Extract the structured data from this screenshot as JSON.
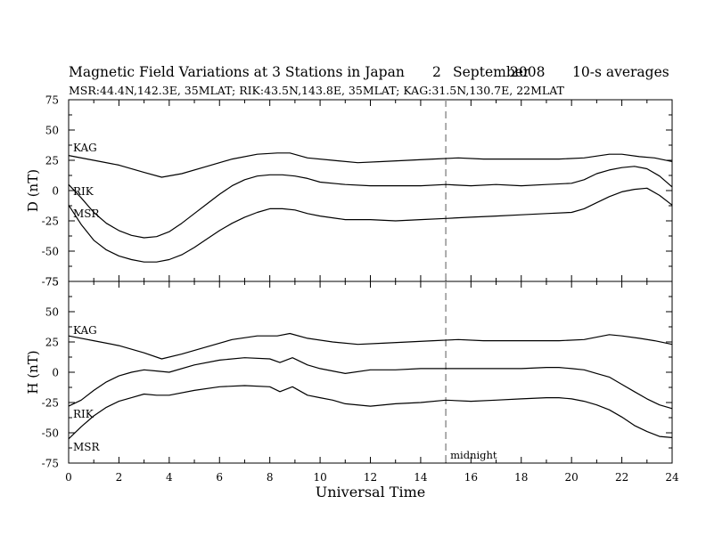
{
  "title": {
    "main": "Magnetic Field Variations at 3 Stations in Japan",
    "day": "2",
    "month": "September",
    "year": "2008",
    "averaging": "10-s averages"
  },
  "subtitle": "MSR:44.4N,142.3E, 35MLAT;   RIK:43.5N,143.8E, 35MLAT;   KAG:31.5N,130.7E, 22MLAT",
  "chart_data": [
    {
      "type": "line",
      "ylabel": "D (nT)",
      "xlim": [
        0,
        24
      ],
      "ylim": [
        -75,
        75
      ],
      "yticks": [
        "75",
        "50",
        "25",
        "0",
        "-25",
        "-50",
        "-75"
      ],
      "series": [
        {
          "name": "KAG",
          "x": [
            0,
            1,
            2,
            3,
            3.7,
            4.5,
            5.5,
            6.5,
            7.5,
            8.3,
            8.8,
            9.5,
            10.5,
            11.5,
            12.5,
            13.5,
            14.5,
            15.5,
            16.5,
            17.5,
            18.5,
            19.5,
            20.5,
            21.5,
            22,
            22.7,
            23.3,
            24
          ],
          "y": [
            29,
            25,
            21,
            15,
            11,
            14,
            20,
            26,
            30,
            31,
            31,
            27,
            25,
            23,
            24,
            25,
            26,
            27,
            26,
            26,
            26,
            26,
            27,
            30,
            30,
            28,
            27,
            24
          ]
        },
        {
          "name": "RIK",
          "x": [
            0,
            0.5,
            1,
            1.5,
            2,
            2.5,
            3,
            3.5,
            4,
            4.5,
            5,
            5.5,
            6,
            6.5,
            7,
            7.5,
            8,
            8.5,
            9,
            9.5,
            10,
            11,
            12,
            13,
            14,
            15,
            16,
            17,
            18,
            19,
            20,
            20.5,
            21,
            21.5,
            22,
            22.5,
            23,
            23.5,
            24
          ],
          "y": [
            5,
            -6,
            -18,
            -27,
            -33,
            -37,
            -39,
            -38,
            -34,
            -27,
            -19,
            -11,
            -3,
            4,
            9,
            12,
            13,
            13,
            12,
            10,
            7,
            5,
            4,
            4,
            4,
            5,
            4,
            5,
            4,
            5,
            6,
            9,
            14,
            17,
            19,
            20,
            18,
            12,
            3
          ]
        },
        {
          "name": "MSR",
          "x": [
            0,
            0.5,
            1,
            1.5,
            2,
            2.5,
            3,
            3.5,
            4,
            4.5,
            5,
            5.5,
            6,
            6.5,
            7,
            7.5,
            8,
            8.5,
            9,
            9.5,
            10,
            11,
            12,
            13,
            14,
            15,
            16,
            17,
            18,
            19,
            20,
            20.5,
            21,
            21.5,
            22,
            22.5,
            23,
            23.5,
            24
          ],
          "y": [
            -12,
            -28,
            -41,
            -49,
            -54,
            -57,
            -59,
            -59,
            -57,
            -53,
            -47,
            -40,
            -33,
            -27,
            -22,
            -18,
            -15,
            -15,
            -16,
            -19,
            -21,
            -24,
            -24,
            -25,
            -24,
            -23,
            -22,
            -21,
            -20,
            -19,
            -18,
            -15,
            -10,
            -5,
            -1,
            1,
            2,
            -4,
            -12
          ]
        }
      ],
      "marker": {
        "x": 15,
        "style": "dashed"
      }
    },
    {
      "type": "line",
      "ylabel": "H (nT)",
      "xlabel": "Universal Time",
      "xlim": [
        0,
        24
      ],
      "ylim": [
        -75,
        75
      ],
      "xticks": [
        "0",
        "2",
        "4",
        "6",
        "8",
        "10",
        "12",
        "14",
        "16",
        "18",
        "20",
        "22",
        "24"
      ],
      "yticks": [
        "75",
        "50",
        "25",
        "0",
        "-25",
        "-50",
        "-75"
      ],
      "series": [
        {
          "name": "KAG",
          "x": [
            0,
            1,
            2,
            3,
            3.7,
            4.5,
            5.5,
            6.5,
            7.5,
            8.3,
            8.8,
            9.5,
            10.5,
            11.5,
            12.5,
            13.5,
            14.5,
            15.5,
            16.5,
            17.5,
            18.5,
            19.5,
            20.5,
            21.5,
            22,
            22.7,
            23.3,
            24
          ],
          "y": [
            30,
            26,
            22,
            16,
            11,
            15,
            21,
            27,
            30,
            30,
            32,
            28,
            25,
            23,
            24,
            25,
            26,
            27,
            26,
            26,
            26,
            26,
            27,
            31,
            30,
            28,
            26,
            23
          ]
        },
        {
          "name": "RIK",
          "x": [
            0,
            0.5,
            1,
            1.5,
            2,
            2.5,
            3,
            3.5,
            4,
            5,
            6,
            7,
            8,
            8.4,
            8.9,
            9.5,
            10,
            10.5,
            11,
            12,
            13,
            14,
            15,
            16,
            17,
            18,
            19,
            19.5,
            20,
            20.5,
            21,
            21.5,
            22,
            22.5,
            23,
            23.5,
            24
          ],
          "y": [
            -28,
            -23,
            -15,
            -8,
            -3,
            0,
            2,
            1,
            0,
            6,
            10,
            12,
            11,
            8,
            12,
            6,
            3,
            1,
            -1,
            2,
            2,
            3,
            3,
            3,
            3,
            3,
            4,
            4,
            3,
            2,
            -1,
            -4,
            -10,
            -16,
            -22,
            -27,
            -30
          ]
        },
        {
          "name": "MSR",
          "x": [
            0,
            0.5,
            1,
            1.5,
            2,
            2.5,
            3,
            3.5,
            4,
            5,
            6,
            7,
            8,
            8.4,
            8.9,
            9.5,
            10,
            10.5,
            11,
            12,
            13,
            14,
            15,
            16,
            17,
            18,
            19,
            19.5,
            20,
            20.5,
            21,
            21.5,
            22,
            22.5,
            23,
            23.5,
            24
          ],
          "y": [
            -55,
            -45,
            -36,
            -29,
            -24,
            -21,
            -18,
            -19,
            -19,
            -15,
            -12,
            -11,
            -12,
            -16,
            -12,
            -19,
            -21,
            -23,
            -26,
            -28,
            -26,
            -25,
            -23,
            -24,
            -23,
            -22,
            -21,
            -21,
            -22,
            -24,
            -27,
            -31,
            -37,
            -44,
            -49,
            -53,
            -54
          ]
        }
      ],
      "marker": {
        "x": 15,
        "style": "dashed",
        "label": "midnight"
      }
    }
  ]
}
